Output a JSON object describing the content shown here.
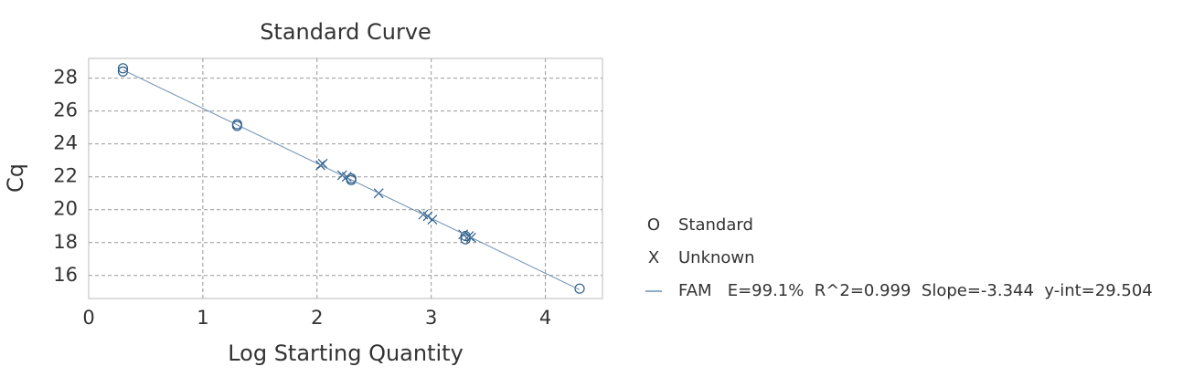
{
  "chart_data": {
    "type": "scatter",
    "title": "Standard Curve",
    "x_label": "Log Starting Quantity",
    "y_label": "Cq",
    "xlim": [
      0,
      4.5
    ],
    "ylim": [
      14.6,
      29.2
    ],
    "xticks": [
      0,
      1,
      2,
      3,
      4
    ],
    "yticks": [
      16,
      18,
      20,
      22,
      24,
      26,
      28
    ],
    "grid": true,
    "legend": "right",
    "series": [
      {
        "name": "Standard",
        "marker": "O",
        "color": "#2e5f8c",
        "x": [
          0.3,
          0.3,
          1.3,
          1.3,
          2.3,
          2.3,
          3.3,
          3.3,
          4.3
        ],
        "values": [
          28.6,
          28.4,
          25.2,
          25.1,
          21.9,
          21.8,
          18.4,
          18.2,
          15.2
        ]
      },
      {
        "name": "Unknown",
        "marker": "X",
        "color": "#2e5f8c",
        "x": [
          2.03,
          2.05,
          2.22,
          2.26,
          2.54,
          2.93,
          2.97,
          3.01,
          3.28,
          3.33,
          3.35
        ],
        "values": [
          22.7,
          22.8,
          22.1,
          22.0,
          21.0,
          19.7,
          19.6,
          19.4,
          18.5,
          18.4,
          18.3
        ]
      },
      {
        "name": "FAM   E=99.1%  R^2=0.999  Slope=-3.344  y-int=29.504",
        "marker": "line",
        "color": "#6d8fb3",
        "x": [
          0.3,
          4.3
        ],
        "values": [
          28.5,
          15.13
        ]
      }
    ]
  }
}
